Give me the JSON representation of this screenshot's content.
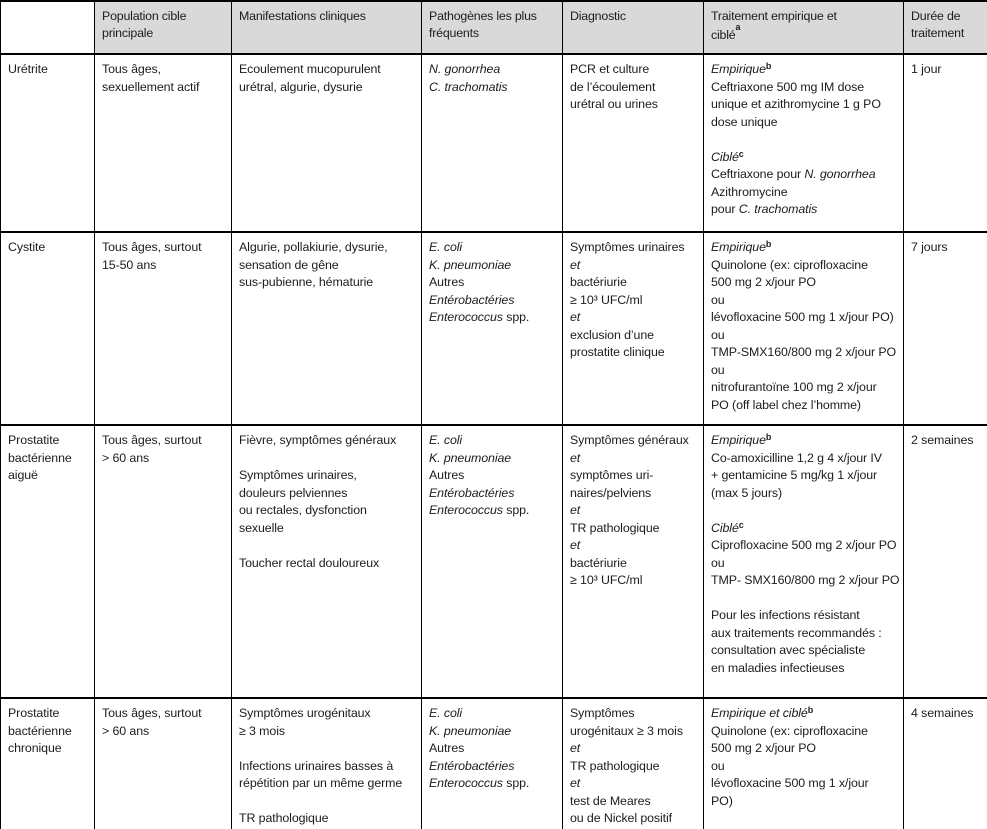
{
  "table": {
    "columns": [
      {
        "key": "condition",
        "lines": [
          ""
        ]
      },
      {
        "key": "population",
        "lines": [
          "Population cible",
          "principale"
        ]
      },
      {
        "key": "manifestations",
        "lines": [
          "Manifestations cliniques"
        ]
      },
      {
        "key": "pathogens",
        "lines": [
          "Pathogènes les plus",
          "fréquents"
        ]
      },
      {
        "key": "diagnostic",
        "lines": [
          "Diagnostic"
        ]
      },
      {
        "key": "treatment",
        "lines": [
          "Traitement empirique et",
          "ciblé"
        ],
        "sup": "a"
      },
      {
        "key": "duration",
        "lines": [
          "Durée de",
          "traitement"
        ]
      }
    ],
    "rows": [
      {
        "condition": [
          [
            "Urétrite"
          ]
        ],
        "population": [
          [
            "Tous âges,"
          ],
          [
            "sexuellement actif"
          ]
        ],
        "manifestations": [
          [
            "Ecoulement mucopurulent"
          ],
          [
            "urétral, algurie, dysurie"
          ]
        ],
        "pathogens": [
          [
            {
              "t": "N. gonorrhea",
              "s": "i"
            }
          ],
          [
            {
              "t": "C. trachomatis",
              "s": "i"
            }
          ]
        ],
        "diagnostic": [
          [
            "PCR et culture"
          ],
          [
            "de l’écoulement"
          ],
          [
            "urétral ou urines"
          ]
        ],
        "treatment": [
          [
            {
              "t": "Empirique",
              "s": "i"
            },
            {
              "t": "b",
              "s": "sup"
            }
          ],
          [
            "Ceftriaxone 500 mg IM dose"
          ],
          [
            "unique et azithromycine 1 g PO"
          ],
          [
            "dose unique"
          ],
          [],
          [
            {
              "t": "Ciblé",
              "s": "i"
            },
            {
              "t": "c",
              "s": "sup"
            }
          ],
          [
            "Ceftriaxone pour ",
            {
              "t": "N. gonorrhea",
              "s": "i"
            }
          ],
          [
            "Azithromycine"
          ],
          [
            "pour ",
            {
              "t": "C. trachomatis",
              "s": "i"
            }
          ]
        ],
        "duration": [
          [
            "1 jour"
          ]
        ]
      },
      {
        "condition": [
          [
            "Cystite"
          ]
        ],
        "population": [
          [
            "Tous âges, surtout"
          ],
          [
            "15-50 ans"
          ]
        ],
        "manifestations": [
          [
            "Algurie, pollakiurie, dysurie,"
          ],
          [
            "sensation de gêne"
          ],
          [
            "sus-pubienne, hématurie"
          ]
        ],
        "pathogens": [
          [
            {
              "t": "E. coli",
              "s": "i"
            }
          ],
          [
            {
              "t": "K. pneumoniae",
              "s": "i"
            }
          ],
          [
            "Autres"
          ],
          [
            {
              "t": "Entérobactéries",
              "s": "i"
            }
          ],
          [
            {
              "t": "Enterococcus",
              "s": "i"
            },
            " spp."
          ]
        ],
        "diagnostic": [
          [
            "Symptômes urinaires"
          ],
          [
            {
              "t": "et",
              "s": "i"
            }
          ],
          [
            "bactériurie"
          ],
          [
            "≥ 10³ UFC/ml"
          ],
          [
            {
              "t": "et",
              "s": "i"
            }
          ],
          [
            "exclusion d’une"
          ],
          [
            "prostatite clinique"
          ]
        ],
        "treatment": [
          [
            {
              "t": "Empirique",
              "s": "i"
            },
            {
              "t": "b",
              "s": "sup"
            }
          ],
          [
            "Quinolone (ex: ciprofloxacine"
          ],
          [
            "500 mg 2 x/jour PO"
          ],
          [
            "ou"
          ],
          [
            "lévofloxacine 500 mg 1 x/jour PO)"
          ],
          [
            "ou"
          ],
          [
            "TMP-SMX160/800 mg 2 x/jour PO"
          ],
          [
            "ou"
          ],
          [
            "nitrofurantoïne 100 mg 2 x/jour"
          ],
          [
            "PO (off label chez l’homme)"
          ]
        ],
        "duration": [
          [
            "7 jours"
          ]
        ]
      },
      {
        "condition": [
          [
            "Prostatite"
          ],
          [
            "bactérienne"
          ],
          [
            "aiguë"
          ]
        ],
        "population": [
          [
            "Tous âges, surtout"
          ],
          [
            "> 60 ans"
          ]
        ],
        "manifestations": [
          [
            "Fièvre, symptômes généraux"
          ],
          [],
          [
            "Symptômes urinaires,"
          ],
          [
            "douleurs pelviennes"
          ],
          [
            "ou rectales, dysfonction"
          ],
          [
            "sexuelle"
          ],
          [],
          [
            "Toucher rectal douloureux"
          ]
        ],
        "pathogens": [
          [
            {
              "t": "E. coli",
              "s": "i"
            }
          ],
          [
            {
              "t": "K. pneumoniae",
              "s": "i"
            }
          ],
          [
            "Autres"
          ],
          [
            {
              "t": "Entérobactéries",
              "s": "i"
            }
          ],
          [
            {
              "t": "Enterococcus",
              "s": "i"
            },
            " spp."
          ]
        ],
        "diagnostic": [
          [
            "Symptômes généraux"
          ],
          [
            {
              "t": "et",
              "s": "i"
            }
          ],
          [
            "symptômes uri-"
          ],
          [
            "naires/pelviens"
          ],
          [
            {
              "t": "et",
              "s": "i"
            }
          ],
          [
            "TR pathologique"
          ],
          [
            {
              "t": "et",
              "s": "i"
            }
          ],
          [
            "bactériurie"
          ],
          [
            "≥ 10³ UFC/ml"
          ]
        ],
        "treatment": [
          [
            {
              "t": "Empirique",
              "s": "i"
            },
            {
              "t": "b",
              "s": "sup"
            }
          ],
          [
            "Co-amoxicilline 1,2 g 4 x/jour IV"
          ],
          [
            "+ gentamicine 5 mg/kg 1 x/jour"
          ],
          [
            "(max 5 jours)"
          ],
          [],
          [
            {
              "t": "Ciblé",
              "s": "i"
            },
            {
              "t": "c",
              "s": "sup"
            }
          ],
          [
            "Ciprofloxacine 500 mg 2 x/jour PO"
          ],
          [
            "ou"
          ],
          [
            "TMP- SMX160/800 mg 2 x/jour PO"
          ],
          [],
          [
            "Pour les infections résistant"
          ],
          [
            "aux traitements recommandés :"
          ],
          [
            "consultation avec spécialiste"
          ],
          [
            "en maladies infectieuses"
          ]
        ],
        "duration": [
          [
            "2 semaines"
          ]
        ]
      },
      {
        "condition": [
          [
            "Prostatite"
          ],
          [
            "bactérienne"
          ],
          [
            "chronique"
          ]
        ],
        "population": [
          [
            "Tous âges, surtout"
          ],
          [
            "> 60 ans"
          ]
        ],
        "manifestations": [
          [
            "Symptômes urogénitaux"
          ],
          [
            "≥ 3 mois"
          ],
          [],
          [
            "Infections urinaires basses à"
          ],
          [
            "répétition par un même germe"
          ],
          [],
          [
            "TR pathologique"
          ]
        ],
        "pathogens": [
          [
            {
              "t": "E. coli",
              "s": "i"
            }
          ],
          [
            {
              "t": "K. pneumoniae",
              "s": "i"
            }
          ],
          [
            "Autres"
          ],
          [
            {
              "t": "Entérobactéries",
              "s": "i"
            }
          ],
          [
            {
              "t": "Enterococcus",
              "s": "i"
            },
            " spp."
          ]
        ],
        "diagnostic": [
          [
            "Symptômes"
          ],
          [
            "urogénitaux ≥ 3 mois"
          ],
          [
            {
              "t": "et",
              "s": "i"
            }
          ],
          [
            "TR pathologique"
          ],
          [
            {
              "t": "et",
              "s": "i"
            }
          ],
          [
            "test de Meares"
          ],
          [
            "ou de Nickel positif"
          ]
        ],
        "treatment": [
          [
            {
              "t": "Empirique et ciblé",
              "s": "i"
            },
            {
              "t": "b",
              "s": "sup"
            }
          ],
          [
            "Quinolone (ex: ciprofloxacine"
          ],
          [
            "500 mg 2 x/jour PO"
          ],
          [
            "ou"
          ],
          [
            "lévofloxacine 500 mg 1 x/jour"
          ],
          [
            "PO)"
          ]
        ],
        "duration": [
          [
            "4 semaines"
          ]
        ]
      }
    ]
  }
}
